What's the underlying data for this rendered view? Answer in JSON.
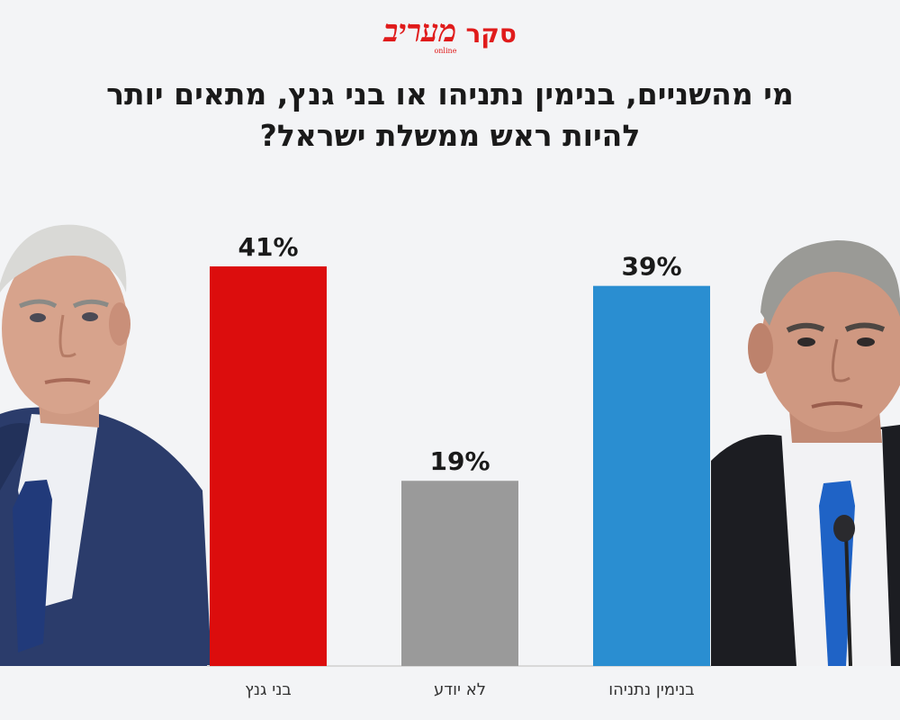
{
  "header": {
    "brand": "מעריב",
    "brand_sub": "online",
    "tag": "סקר"
  },
  "title": "מי מהשניים, בנימין נתניהו או בני גנץ, מתאים יותר להיות ראש ממשלת ישראל?",
  "chart_data": {
    "type": "bar",
    "title": "מי מהשניים, בנימין נתניהו או בני גנץ, מתאים יותר להיות ראש ממשלת ישראל?",
    "categories": [
      "בני גנץ",
      "לא יודע",
      "בנימין נתניהו"
    ],
    "values": [
      41,
      19,
      39
    ],
    "value_labels": [
      "41%",
      "19%",
      "39%"
    ],
    "colors": [
      "#dc0d0d",
      "#9a9a9a",
      "#2a8ed1"
    ],
    "unit": "%",
    "ylim": [
      0,
      41
    ],
    "grid": false,
    "legend": "none"
  }
}
